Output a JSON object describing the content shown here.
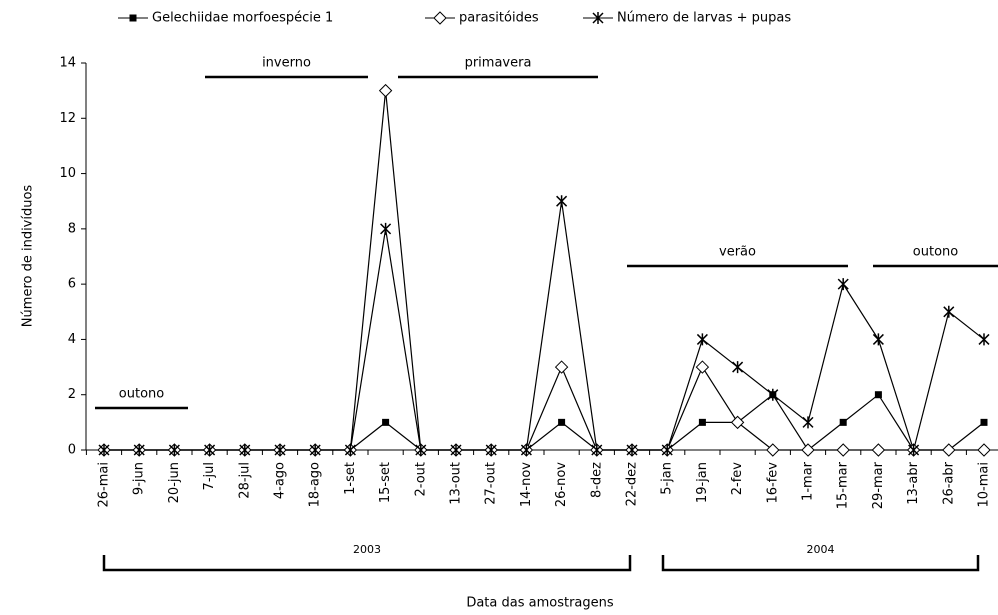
{
  "chart_data": {
    "type": "line",
    "categories": [
      "26-mai",
      "9-jun",
      "20-jun",
      "7-jul",
      "28-jul",
      "4-ago",
      "18-ago",
      "1-set",
      "15-set",
      "2-out",
      "13-out",
      "27-out",
      "14-nov",
      "26-nov",
      "8-dez",
      "22-dez",
      "5-jan",
      "19-jan",
      "2-fev",
      "16-fev",
      "1-mar",
      "15-mar",
      "29-mar",
      "13-abr",
      "26-abr",
      "10-mai"
    ],
    "series": [
      {
        "name": "Gelechiidae morfoespécie 1",
        "color": "#000000",
        "marker": "square",
        "values": [
          0,
          0,
          0,
          0,
          0,
          0,
          0,
          0,
          1,
          0,
          0,
          0,
          0,
          1,
          0,
          0,
          0,
          1,
          1,
          2,
          0,
          1,
          2,
          0,
          0,
          1
        ]
      },
      {
        "name": "parasitóides",
        "color": "#000000",
        "marker": "diamond",
        "values": [
          0,
          0,
          0,
          0,
          0,
          0,
          0,
          0,
          13,
          0,
          0,
          0,
          0,
          3,
          0,
          0,
          0,
          3,
          1,
          0,
          0,
          0,
          0,
          0,
          0,
          0
        ]
      },
      {
        "name": "Número de larvas + pupas",
        "color": "#000000",
        "marker": "star",
        "values": [
          0,
          0,
          0,
          0,
          0,
          0,
          0,
          0,
          8,
          0,
          0,
          0,
          0,
          9,
          0,
          0,
          0,
          4,
          3,
          2,
          1,
          6,
          4,
          0,
          5,
          4
        ]
      }
    ],
    "ylim": [
      0,
      14
    ],
    "yticks": [
      0,
      2,
      4,
      6,
      8,
      10,
      12,
      14
    ],
    "y_label": "Número de indivíduos",
    "x_label": "Data das amostragens",
    "seasons": [
      "outono",
      "inverno",
      "primavera",
      "verão",
      "outono"
    ],
    "years": [
      "2003",
      "2004"
    ],
    "legend": "top",
    "grid": false
  }
}
